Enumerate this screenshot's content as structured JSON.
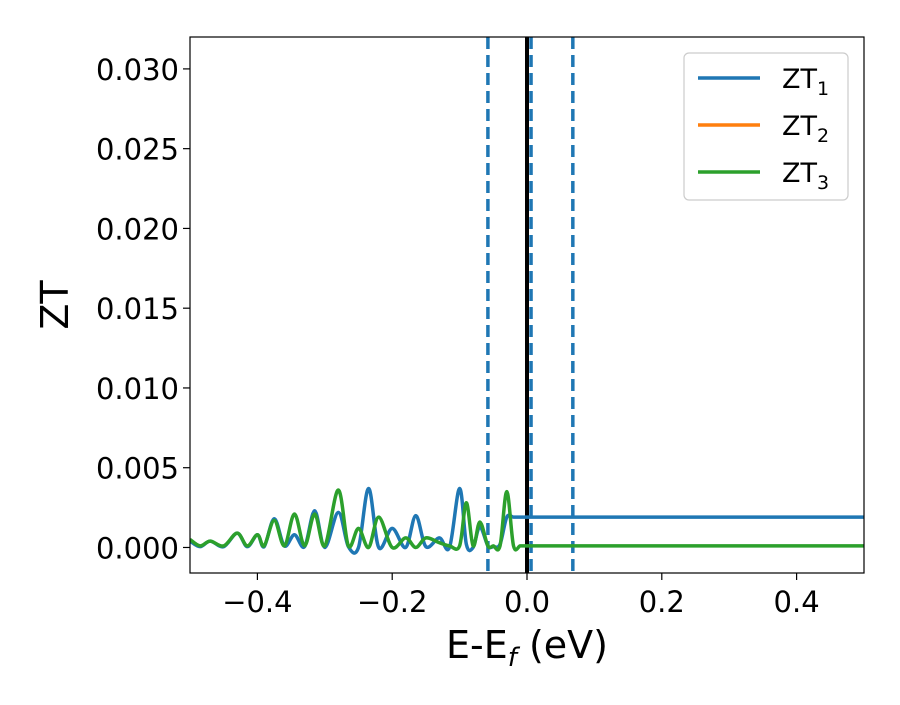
{
  "chart_data": {
    "type": "line",
    "xlabel": "E-E_f (eV)",
    "xlabel_main": "E-E",
    "xlabel_sub": "f",
    "xlabel_tail": " (eV)",
    "ylabel": "ZT",
    "xlim": [
      -0.5,
      0.5
    ],
    "ylim": [
      -0.0016,
      0.032
    ],
    "x_ticks": [
      -0.4,
      -0.2,
      0.0,
      0.2,
      0.4
    ],
    "x_tick_labels": [
      "−0.4",
      "−0.2",
      "0.0",
      "0.2",
      "0.4"
    ],
    "y_ticks": [
      0.0,
      0.005,
      0.01,
      0.015,
      0.02,
      0.025,
      0.03
    ],
    "y_tick_labels": [
      "0.000",
      "0.005",
      "0.010",
      "0.015",
      "0.020",
      "0.025",
      "0.030"
    ],
    "grid": false,
    "legend_position": "top-right",
    "vlines": [
      {
        "x": -0.058,
        "style": "dashed",
        "color": "#1f77b4"
      },
      {
        "x": 0.0,
        "style": "solid",
        "color": "#000000"
      },
      {
        "x": 0.006,
        "style": "dashed",
        "color": "#1f77b4"
      },
      {
        "x": 0.068,
        "style": "dashed",
        "color": "#1f77b4"
      }
    ],
    "series": [
      {
        "name": "ZT_1",
        "label_main": "ZT",
        "label_sub": "1",
        "color": "#1f77b4",
        "x": [
          -0.5,
          -0.485,
          -0.47,
          -0.45,
          -0.43,
          -0.415,
          -0.4,
          -0.39,
          -0.375,
          -0.36,
          -0.345,
          -0.33,
          -0.315,
          -0.3,
          -0.28,
          -0.265,
          -0.25,
          -0.235,
          -0.22,
          -0.2,
          -0.18,
          -0.165,
          -0.15,
          -0.13,
          -0.115,
          -0.1,
          -0.09,
          -0.08,
          -0.07,
          -0.058,
          -0.05,
          -0.04,
          -0.03,
          -0.02,
          -0.01,
          0.0,
          0.01,
          0.025,
          0.04,
          0.055,
          0.07,
          0.085,
          0.1,
          0.12,
          0.14,
          0.16,
          0.19,
          0.21,
          0.235,
          0.26,
          0.29,
          0.32,
          0.34,
          0.36,
          0.38,
          0.4,
          0.42,
          0.44,
          0.46,
          0.48,
          0.5
        ],
        "y": [
          0.0004,
          5e-05,
          0.0004,
          5e-05,
          0.0009,
          5e-05,
          0.0008,
          5e-05,
          0.0018,
          0.0001,
          0.0008,
          5e-05,
          0.0023,
          0.0,
          0.0022,
          5e-05,
          0.0,
          0.0037,
          0.0,
          0.0012,
          0.0,
          0.002,
          5e-05,
          0.0006,
          0.0,
          0.0037,
          0.0002,
          0.0,
          0.0013,
          0.0001,
          5e-05,
          0.0002,
          0.0019,
          0.0019,
          0.0019,
          0.0019,
          0.0019,
          0.0019,
          0.0019,
          0.0019,
          0.0019,
          0.0019,
          0.0019,
          0.0019,
          0.0019,
          0.0019,
          0.0019,
          0.0019,
          0.0019,
          0.0019,
          0.0019,
          0.0019,
          0.0019,
          0.0019,
          0.0019,
          0.0019,
          0.0019,
          0.0019,
          0.0019,
          0.0019,
          0.0019
        ]
      },
      {
        "name": "ZT_2",
        "label_main": "ZT",
        "label_sub": "2",
        "color": "#ff7f0e",
        "x": [],
        "y": []
      },
      {
        "name": "ZT_3",
        "label_main": "ZT",
        "label_sub": "3",
        "color": "#2ca02c",
        "x": [
          -0.5,
          -0.485,
          -0.47,
          -0.45,
          -0.43,
          -0.415,
          -0.4,
          -0.39,
          -0.375,
          -0.36,
          -0.345,
          -0.33,
          -0.315,
          -0.3,
          -0.28,
          -0.265,
          -0.25,
          -0.235,
          -0.22,
          -0.2,
          -0.18,
          -0.165,
          -0.15,
          -0.13,
          -0.115,
          -0.1,
          -0.09,
          -0.08,
          -0.07,
          -0.058,
          -0.05,
          -0.04,
          -0.03,
          -0.02,
          -0.01,
          0.0,
          0.01,
          0.025,
          0.04,
          0.055,
          0.07,
          0.085,
          0.1,
          0.12,
          0.14,
          0.16,
          0.19,
          0.21,
          0.235,
          0.26,
          0.29,
          0.32,
          0.34,
          0.36,
          0.38,
          0.4,
          0.42,
          0.44,
          0.46,
          0.48,
          0.5
        ],
        "y": [
          0.0005,
          0.0001,
          0.0004,
          0.0001,
          0.0009,
          0.0001,
          0.0008,
          0.0001,
          0.0017,
          0.0001,
          0.0021,
          0.0001,
          0.0021,
          0.0001,
          0.0036,
          0.0001,
          0.0012,
          0.0,
          0.0019,
          0.0,
          0.0006,
          0.0,
          0.0006,
          0.0003,
          0.0001,
          0.0001,
          0.0028,
          0.0001,
          0.0016,
          0.0001,
          0.0001,
          0.0001,
          0.0035,
          0.0001,
          0.0001,
          0.0001,
          0.0001,
          0.0001,
          0.0001,
          0.0001,
          0.0001,
          0.0001,
          0.0001,
          0.0001,
          0.0001,
          0.0001,
          0.0001,
          0.0001,
          0.0001,
          0.0001,
          0.0001,
          0.0001,
          0.0001,
          0.0001,
          0.0001,
          0.0001,
          0.0001,
          0.0001,
          0.0001,
          0.0001,
          0.0001
        ]
      }
    ]
  }
}
